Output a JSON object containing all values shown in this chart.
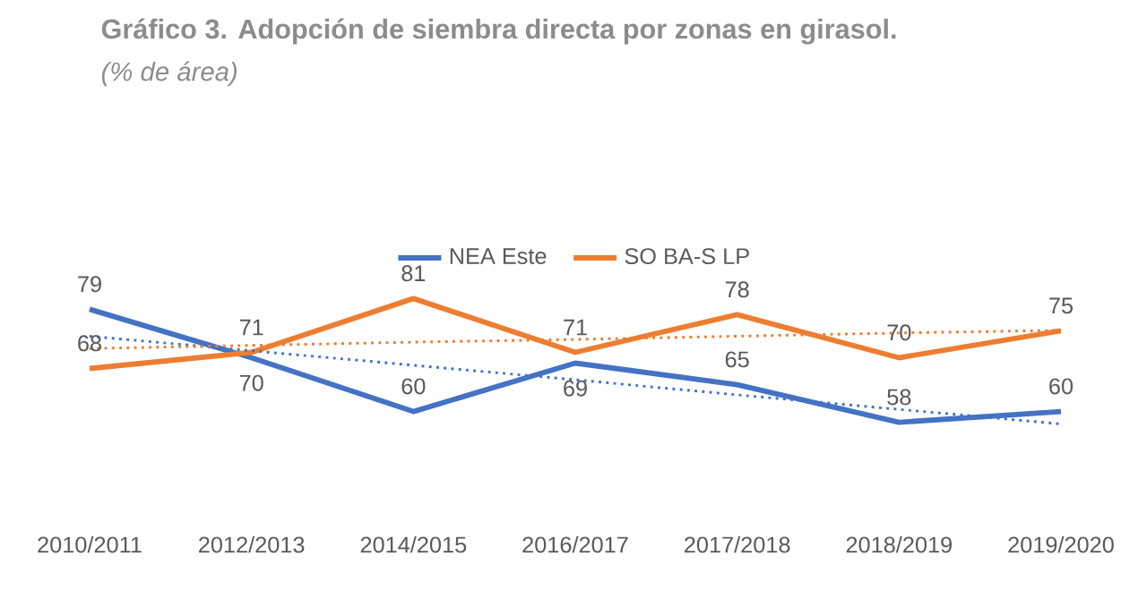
{
  "chart_data": {
    "type": "line",
    "title": "Gráfico 3. Adopción de siembra directa por zonas en girasol.",
    "subtitle": "(% de área)",
    "categories": [
      "2010/2011",
      "2012/2013",
      "2014/2015",
      "2016/2017",
      "2017/2018",
      "2018/2019",
      "2019/2020"
    ],
    "series": [
      {
        "name": "NEA Este",
        "color": "#4472c4",
        "values": [
          79,
          70,
          60,
          69,
          65,
          58,
          60
        ],
        "value_labels": [
          "79",
          "70",
          "60",
          "69",
          "65",
          "58",
          "60"
        ]
      },
      {
        "name": "SO BA-S LP",
        "color": "#ed7d31",
        "values": [
          68,
          71,
          81,
          71,
          78,
          70,
          75
        ],
        "value_labels": [
          "68",
          "71",
          "81",
          "71",
          "78",
          "70",
          "75"
        ]
      },
      {
        "type": "line",
        "line_style": "dotted",
        "color": "#4472c4",
        "values": [
          74.0,
          71.3,
          68.6,
          65.9,
          63.1,
          60.4,
          57.7
        ]
      },
      {
        "type": "line",
        "line_style": "dotted",
        "color": "#ed7d31",
        "values": [
          71.7,
          72.3,
          72.9,
          73.4,
          74.0,
          74.6,
          75.1
        ]
      }
    ],
    "legend": "top",
    "marker": "none",
    "line_style": "solid",
    "grid": false
  }
}
